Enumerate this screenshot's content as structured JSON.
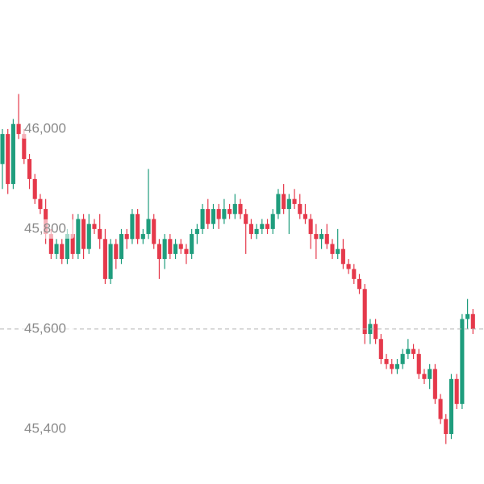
{
  "chart_data": {
    "type": "candlestick",
    "up_color": "#1f9d7d",
    "down_color": "#e5394b",
    "ylim": [
      45290,
      46258
    ],
    "yticks": [
      {
        "value": 45400,
        "label": "45,400"
      },
      {
        "value": 45600,
        "label": "45,600"
      },
      {
        "value": 45800,
        "label": "45,800"
      },
      {
        "value": 46000,
        "label": "46,000"
      }
    ],
    "open": [
      45930,
      45990,
      45890,
      46010,
      45990,
      45940,
      45900,
      45860,
      45840,
      45790,
      45750,
      45770,
      45740,
      45790,
      45750,
      45820,
      45760,
      45810,
      45800,
      45780,
      45700,
      45770,
      45740,
      45790,
      45780,
      45830,
      45780,
      45790,
      45820,
      45770,
      45740,
      45780,
      45750,
      45770,
      45760,
      45750,
      45790,
      45800,
      45840,
      45810,
      45840,
      45820,
      45840,
      45830,
      45850,
      45830,
      45810,
      45790,
      45800,
      45810,
      45800,
      45830,
      45870,
      45840,
      45860,
      45850,
      45830,
      45820,
      45790,
      45780,
      45790,
      45770,
      45750,
      45760,
      45730,
      45720,
      45700,
      45680,
      45590,
      45610,
      45580,
      45540,
      45530,
      45520,
      45530,
      45550,
      45560,
      45550,
      45510,
      45500,
      45520,
      45460,
      45420,
      45390,
      45500,
      45450,
      45620,
      45630
    ],
    "high": [
      46000,
      46000,
      46020,
      46070,
      46000,
      45950,
      45910,
      45870,
      45860,
      45800,
      45780,
      45780,
      45800,
      45830,
      45830,
      45830,
      45830,
      45820,
      45830,
      45800,
      45780,
      45780,
      45800,
      45800,
      45840,
      45840,
      45800,
      45920,
      45830,
      45780,
      45790,
      45790,
      45780,
      45780,
      45770,
      45800,
      45810,
      45850,
      45860,
      45850,
      45850,
      45860,
      45850,
      45870,
      45860,
      45840,
      45820,
      45810,
      45820,
      45820,
      45840,
      45880,
      45890,
      45870,
      45880,
      45870,
      45850,
      45830,
      45810,
      45800,
      45810,
      45780,
      45800,
      45780,
      45740,
      45730,
      45710,
      45690,
      45620,
      45620,
      45590,
      45550,
      45540,
      45540,
      45560,
      45580,
      45570,
      45560,
      45520,
      45530,
      45530,
      45470,
      45430,
      45510,
      45510,
      45630,
      45660,
      45640
    ],
    "low": [
      45880,
      45870,
      45880,
      45980,
      45930,
      45880,
      45850,
      45830,
      45770,
      45740,
      45740,
      45730,
      45730,
      45740,
      45740,
      45740,
      45750,
      45790,
      45760,
      45690,
      45690,
      45720,
      45730,
      45760,
      45770,
      45770,
      45770,
      45780,
      45760,
      45700,
      45720,
      45740,
      45740,
      45750,
      45730,
      45740,
      45770,
      45790,
      45800,
      45800,
      45800,
      45810,
      45820,
      45820,
      45820,
      45750,
      45780,
      45780,
      45790,
      45790,
      45790,
      45820,
      45830,
      45790,
      45840,
      45820,
      45810,
      45760,
      45740,
      45760,
      45760,
      45740,
      45740,
      45720,
      45710,
      45690,
      45670,
      45570,
      45570,
      45570,
      45530,
      45520,
      45510,
      45510,
      45520,
      45540,
      45540,
      45500,
      45490,
      45480,
      45450,
      45410,
      45370,
      45380,
      45440,
      45440,
      45600,
      45590
    ],
    "close": [
      45990,
      45890,
      46010,
      45990,
      45940,
      45900,
      45860,
      45840,
      45790,
      45750,
      45770,
      45740,
      45790,
      45750,
      45820,
      45760,
      45810,
      45800,
      45780,
      45700,
      45770,
      45740,
      45790,
      45780,
      45830,
      45780,
      45790,
      45820,
      45770,
      45740,
      45780,
      45750,
      45770,
      45760,
      45750,
      45790,
      45800,
      45840,
      45810,
      45840,
      45820,
      45840,
      45830,
      45850,
      45830,
      45810,
      45790,
      45800,
      45810,
      45800,
      45830,
      45870,
      45840,
      45860,
      45850,
      45830,
      45820,
      45790,
      45780,
      45790,
      45770,
      45750,
      45760,
      45730,
      45720,
      45700,
      45680,
      45590,
      45610,
      45580,
      45540,
      45530,
      45520,
      45530,
      45550,
      45560,
      45550,
      45510,
      45500,
      45520,
      45460,
      45420,
      45390,
      45500,
      45450,
      45620,
      45630,
      45600
    ]
  }
}
